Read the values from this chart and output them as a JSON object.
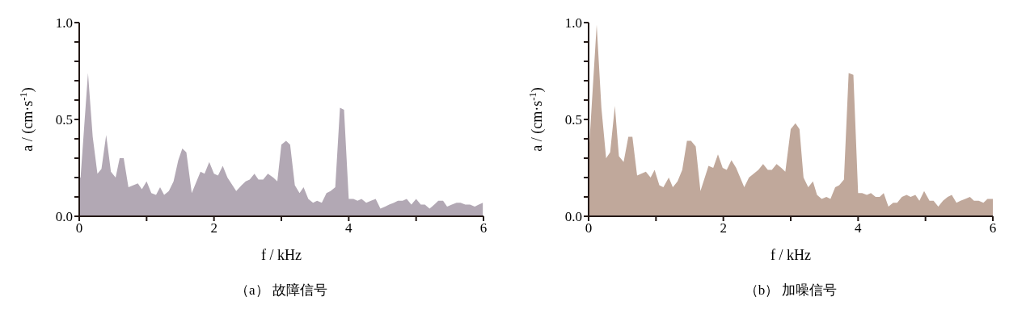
{
  "chart_data": [
    {
      "type": "area",
      "title": "（a） 故障信号",
      "xlabel": "f / kHz",
      "ylabel": "a / (cm·s$^{-1}$)",
      "xlim": [
        0,
        6
      ],
      "ylim": [
        0,
        1
      ],
      "xticks": [
        0,
        {
          "value": 1,
          "label": null
        },
        2,
        {
          "value": 3,
          "label": null
        },
        4,
        {
          "value": 5,
          "label": null
        },
        6
      ],
      "yticks": [
        {
          "value": 0,
          "label": "0.0"
        },
        {
          "value": 0.1,
          "label": null
        },
        {
          "value": 0.2,
          "label": null
        },
        {
          "value": 0.3,
          "label": null
        },
        {
          "value": 0.4,
          "label": null
        },
        {
          "value": 0.5,
          "label": "0.5"
        },
        {
          "value": 0.6,
          "label": null
        },
        {
          "value": 0.7,
          "label": null
        },
        {
          "value": 0.8,
          "label": null
        },
        {
          "value": 0.9,
          "label": null
        },
        {
          "value": 1,
          "label": "1.0"
        }
      ],
      "grid": false,
      "legend": false,
      "series": [
        {
          "color": "#b2a8b4",
          "x": [
            0,
            0.02,
            0.13,
            0.2,
            0.27,
            0.33,
            0.4,
            0.47,
            0.54,
            0.6,
            0.66,
            0.73,
            0.87,
            0.93,
            1.0,
            1.07,
            1.14,
            1.2,
            1.26,
            1.33,
            1.4,
            1.47,
            1.53,
            1.59,
            1.67,
            1.8,
            1.86,
            1.93,
            2.0,
            2.06,
            2.13,
            2.2,
            2.33,
            2.41,
            2.47,
            2.53,
            2.6,
            2.66,
            2.73,
            2.8,
            2.88,
            2.94,
            3.0,
            3.07,
            3.13,
            3.2,
            3.27,
            3.33,
            3.4,
            3.47,
            3.53,
            3.6,
            3.67,
            3.73,
            3.8,
            3.87,
            3.93,
            4.0,
            4.07,
            4.13,
            4.19,
            4.26,
            4.33,
            4.4,
            4.47,
            4.54,
            4.6,
            4.67,
            4.73,
            4.8,
            4.86,
            4.93,
            5.0,
            5.07,
            5.13,
            5.2,
            5.27,
            5.33,
            5.4,
            5.46,
            5.53,
            5.6,
            5.66,
            5.73,
            5.8,
            5.87,
            5.93,
            5.99
          ],
          "values": [
            0.2,
            0.2,
            0.74,
            0.41,
            0.22,
            0.245,
            0.42,
            0.23,
            0.2,
            0.3,
            0.3,
            0.15,
            0.17,
            0.14,
            0.18,
            0.12,
            0.11,
            0.15,
            0.11,
            0.13,
            0.18,
            0.29,
            0.35,
            0.33,
            0.12,
            0.23,
            0.22,
            0.28,
            0.22,
            0.21,
            0.26,
            0.2,
            0.13,
            0.16,
            0.18,
            0.19,
            0.22,
            0.19,
            0.19,
            0.22,
            0.2,
            0.18,
            0.37,
            0.39,
            0.37,
            0.16,
            0.12,
            0.15,
            0.09,
            0.07,
            0.08,
            0.07,
            0.12,
            0.13,
            0.15,
            0.56,
            0.55,
            0.09,
            0.09,
            0.08,
            0.09,
            0.07,
            0.08,
            0.09,
            0.04,
            0.05,
            0.06,
            0.07,
            0.08,
            0.08,
            0.09,
            0.06,
            0.09,
            0.06,
            0.06,
            0.04,
            0.06,
            0.08,
            0.08,
            0.05,
            0.06,
            0.07,
            0.07,
            0.06,
            0.06,
            0.05,
            0.06,
            0.07
          ]
        }
      ]
    },
    {
      "type": "area",
      "title": "（b） 加噪信号",
      "xlabel": "f / kHz",
      "ylabel": "a / (cm·s$^{-1}$)",
      "xlim": [
        0,
        6
      ],
      "ylim": [
        0,
        1
      ],
      "xticks": [
        0,
        {
          "value": 1,
          "label": null
        },
        2,
        {
          "value": 3,
          "label": null
        },
        4,
        {
          "value": 5,
          "label": null
        },
        6
      ],
      "yticks": [
        {
          "value": 0,
          "label": "0.0"
        },
        {
          "value": 0.1,
          "label": null
        },
        {
          "value": 0.2,
          "label": null
        },
        {
          "value": 0.3,
          "label": null
        },
        {
          "value": 0.4,
          "label": null
        },
        {
          "value": 0.5,
          "label": "0.5"
        },
        {
          "value": 0.6,
          "label": null
        },
        {
          "value": 0.7,
          "label": null
        },
        {
          "value": 0.8,
          "label": null
        },
        {
          "value": 0.9,
          "label": null
        },
        {
          "value": 1,
          "label": "1.0"
        }
      ],
      "grid": false,
      "legend": false,
      "series": [
        {
          "color": "#c0a89b",
          "x": [
            0,
            0.12,
            0.19,
            0.26,
            0.32,
            0.39,
            0.45,
            0.52,
            0.59,
            0.65,
            0.72,
            0.85,
            0.92,
            0.98,
            1.05,
            1.11,
            1.19,
            1.25,
            1.32,
            1.39,
            1.46,
            1.52,
            1.59,
            1.66,
            1.78,
            1.85,
            1.92,
            1.99,
            2.05,
            2.12,
            2.19,
            2.31,
            2.38,
            2.45,
            2.52,
            2.59,
            2.66,
            2.72,
            2.79,
            2.86,
            2.92,
            3.0,
            3.07,
            3.13,
            3.19,
            3.26,
            3.33,
            3.39,
            3.46,
            3.53,
            3.59,
            3.66,
            3.72,
            3.79,
            3.86,
            3.93,
            4.0,
            4.06,
            4.13,
            4.19,
            4.26,
            4.32,
            4.38,
            4.45,
            4.52,
            4.58,
            4.65,
            4.72,
            4.78,
            4.85,
            4.91,
            4.98,
            5.06,
            5.12,
            5.19,
            5.26,
            5.33,
            5.39,
            5.46,
            5.52,
            5.59,
            5.66,
            5.72,
            5.79,
            5.86,
            5.92,
            6.0
          ],
          "values": [
            0.31,
            0.99,
            0.56,
            0.3,
            0.33,
            0.57,
            0.31,
            0.28,
            0.41,
            0.41,
            0.21,
            0.23,
            0.2,
            0.24,
            0.16,
            0.15,
            0.2,
            0.15,
            0.18,
            0.24,
            0.39,
            0.39,
            0.36,
            0.13,
            0.26,
            0.25,
            0.32,
            0.25,
            0.24,
            0.29,
            0.25,
            0.15,
            0.2,
            0.22,
            0.24,
            0.27,
            0.24,
            0.24,
            0.27,
            0.25,
            0.23,
            0.45,
            0.48,
            0.45,
            0.2,
            0.15,
            0.18,
            0.11,
            0.09,
            0.1,
            0.09,
            0.15,
            0.16,
            0.19,
            0.74,
            0.73,
            0.12,
            0.12,
            0.11,
            0.12,
            0.1,
            0.1,
            0.12,
            0.05,
            0.07,
            0.07,
            0.1,
            0.11,
            0.1,
            0.11,
            0.08,
            0.13,
            0.08,
            0.08,
            0.05,
            0.08,
            0.1,
            0.11,
            0.07,
            0.08,
            0.09,
            0.1,
            0.08,
            0.08,
            0.07,
            0.09,
            0.09
          ]
        }
      ]
    }
  ]
}
